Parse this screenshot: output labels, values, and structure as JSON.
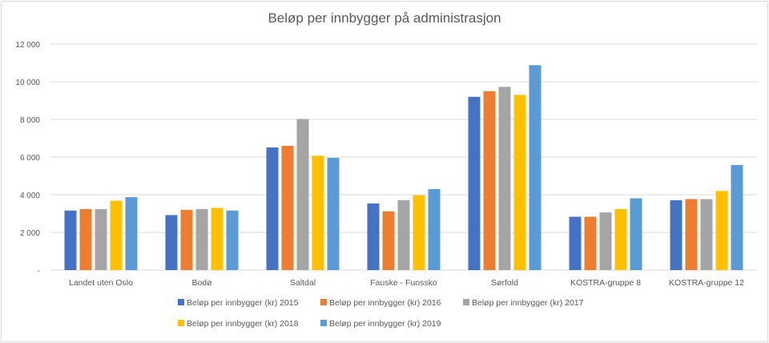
{
  "chart_data": {
    "type": "bar",
    "title": "Beløp per innbygger på administrasjon",
    "xlabel": "",
    "ylabel": "",
    "ylim": [
      0,
      12000
    ],
    "yticks": [
      0,
      2000,
      4000,
      6000,
      8000,
      10000,
      12000
    ],
    "ytick_labels": [
      "-",
      "2 000",
      "4 000",
      "6 000",
      "8 000",
      "10 000",
      "12 000"
    ],
    "grid": true,
    "legend_position": "bottom",
    "categories": [
      "Landet uten Oslo",
      "Bodø",
      "Saltdal",
      "Fauske - Fuossko",
      "Sørfold",
      "KOSTRA-gruppe 8",
      "KOSTRA-gruppe 12"
    ],
    "series": [
      {
        "name": "Beløp per innbygger (kr) 2015",
        "color": "#4472c4",
        "values": [
          3160,
          2920,
          6510,
          3540,
          9200,
          2830,
          3710
        ]
      },
      {
        "name": "Beløp per innbygger (kr) 2016",
        "color": "#ed7d31",
        "values": [
          3240,
          3200,
          6600,
          3120,
          9500,
          2830,
          3770
        ]
      },
      {
        "name": "Beløp per innbygger (kr) 2017",
        "color": "#a5a5a5",
        "values": [
          3240,
          3240,
          8020,
          3710,
          9730,
          3060,
          3770
        ]
      },
      {
        "name": "Beløp per innbygger (kr) 2018",
        "color": "#ffc000",
        "values": [
          3680,
          3300,
          6070,
          3970,
          9300,
          3240,
          4200
        ]
      },
      {
        "name": "Beløp per innbygger (kr) 2019",
        "color": "#5b9bd5",
        "values": [
          3870,
          3160,
          5960,
          4300,
          10880,
          3810,
          5580
        ]
      }
    ]
  }
}
